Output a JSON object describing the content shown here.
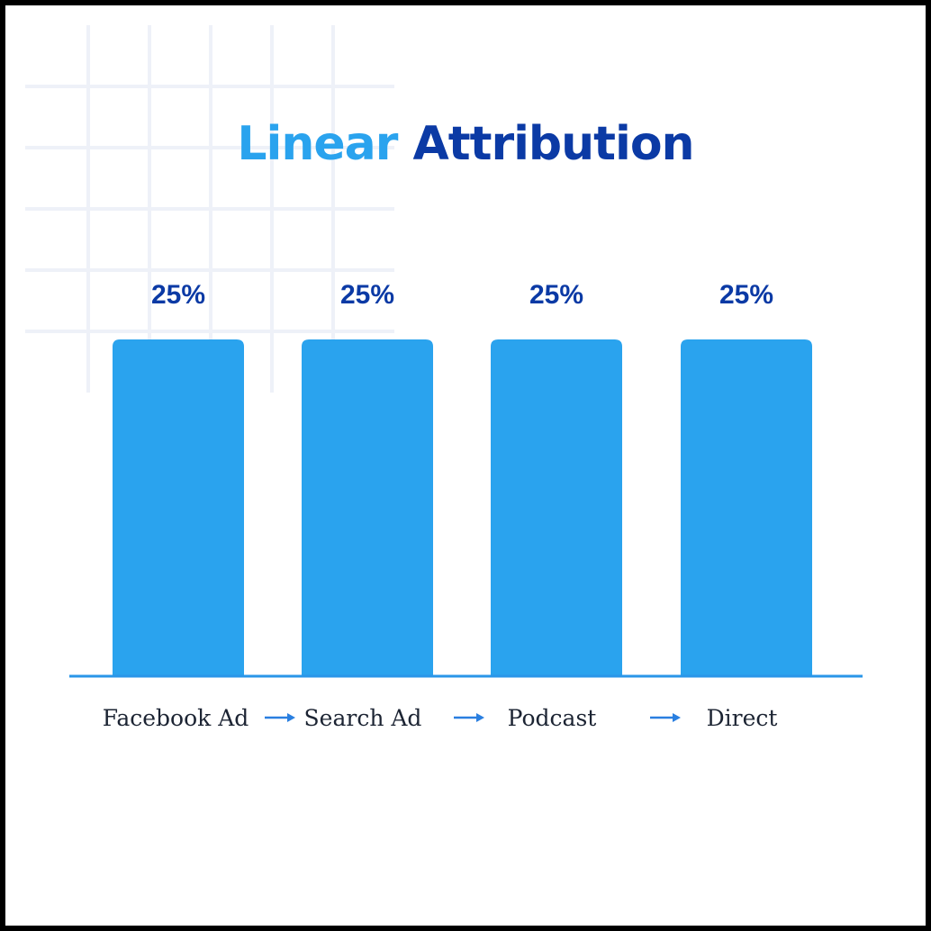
{
  "title": {
    "part1": "Linear",
    "part2": "Attribution"
  },
  "colors": {
    "title_light": "#2aa3ee",
    "title_dark": "#0b3aa5",
    "bar": "#2aa3ee",
    "baseline": "#2a96e8",
    "value_label": "#0b3aa5",
    "category_label": "#1c2433",
    "arrow": "#2a7fe0",
    "grid": "#eef1f8"
  },
  "chart_data": {
    "type": "bar",
    "title": "Linear Attribution",
    "categories": [
      "Facebook Ad",
      "Search Ad",
      "Podcast",
      "Direct"
    ],
    "values": [
      25,
      25,
      25,
      25
    ],
    "value_labels": [
      "25%",
      "25%",
      "25%",
      "25%"
    ],
    "flow_arrows": true,
    "unit": "%",
    "ylim": [
      0,
      25
    ],
    "grid": false,
    "legend": "none"
  }
}
